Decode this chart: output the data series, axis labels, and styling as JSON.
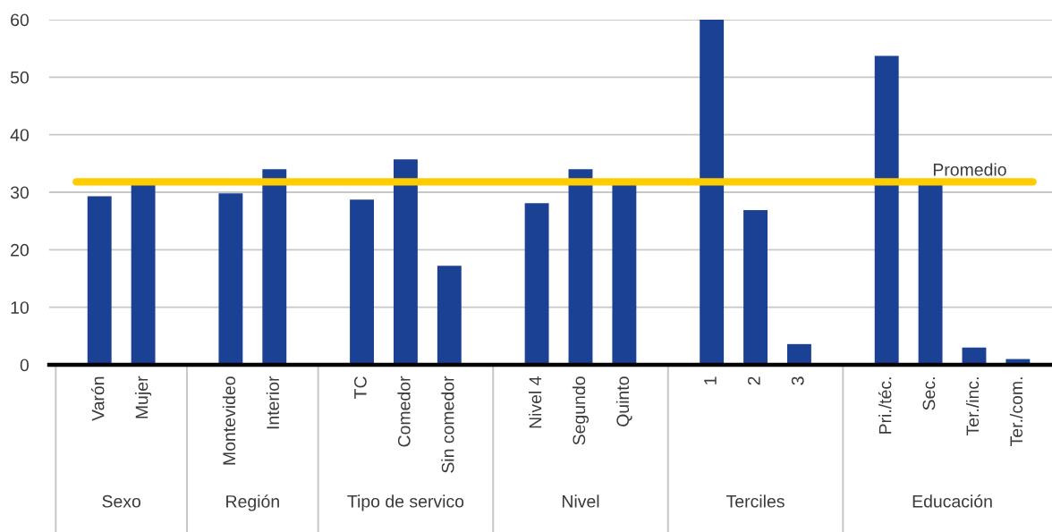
{
  "chart_data": {
    "type": "bar",
    "categories": [
      "Varón",
      "Mujer",
      null,
      "Montevideo",
      "Interior",
      null,
      "TC",
      "Comedor",
      "Sin comedor",
      null,
      "Nivel 4",
      "Segundo",
      "Quinto",
      null,
      "1",
      "2",
      "3",
      null,
      "Pri./téc.",
      "Sec.",
      "Ter./inc.",
      "Ter./com."
    ],
    "values": [
      29.3,
      31.5,
      null,
      29.8,
      34.0,
      null,
      28.7,
      35.7,
      17.2,
      null,
      28.1,
      34.0,
      31.5,
      null,
      60,
      26.9,
      3.6,
      null,
      53.7,
      31.5,
      3.0,
      1.0
    ],
    "color": "#1a4194",
    "ylim": [
      0,
      60
    ],
    "yticks": [
      0,
      10,
      20,
      30,
      40,
      50,
      60
    ],
    "grid": "y",
    "ref_lines": [
      {
        "axis": "y",
        "value": 31.8,
        "label": "Promedio",
        "color": "#ffcc00"
      }
    ],
    "annotations": [
      "Sexo",
      "Región",
      "Tipo de servico",
      "Nivel",
      "Terciles",
      "Educación"
    ]
  }
}
